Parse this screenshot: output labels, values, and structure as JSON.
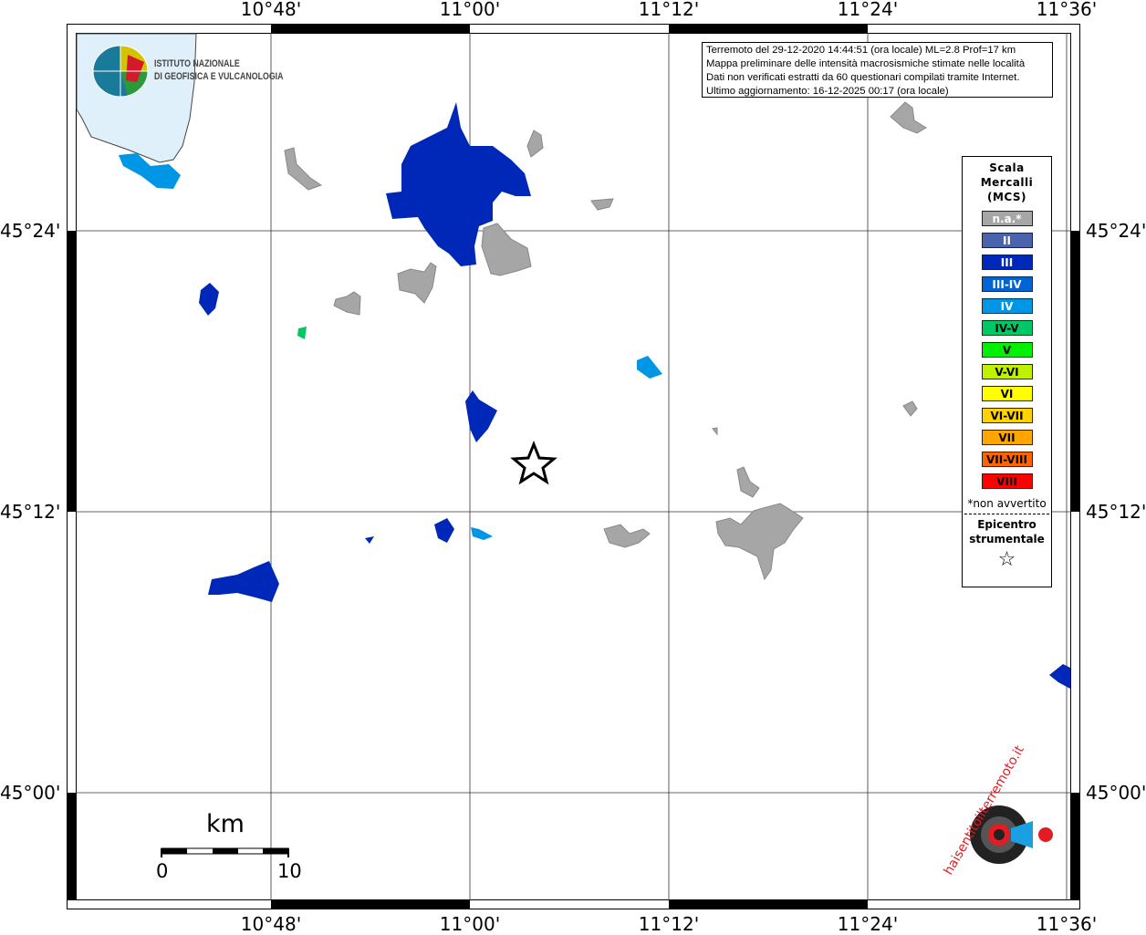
{
  "map": {
    "lon_ticks": [
      "10°48'",
      "11°00'",
      "11°12'",
      "11°24'",
      "11°36'"
    ],
    "lat_ticks": [
      "45°24'",
      "45°12'",
      "45°00'"
    ],
    "colors": {
      "water": "#e0f0fb",
      "grey": "#a6a6a6",
      "II": "#4b63ad",
      "III": "#0028b8",
      "III-IV": "#0064d2",
      "IV": "#0096e6",
      "IV-V": "#00c864",
      "epicenter": "#000000"
    }
  },
  "info": {
    "line1": "Terremoto del 29-12-2020 14:44:51 (ora locale) ML=2.8 Prof=17 km",
    "line2": "Mappa preliminare delle intensità macrosismiche stimate nelle località",
    "line3": "Dati non verificati estratti da 60 questionari compilati tramite Internet.",
    "line4": "Ultimo aggiornamento: 16-12-2025 00:17 (ora locale)"
  },
  "legend": {
    "title1": "Scala",
    "title2": "Mercalli",
    "title3": "(MCS)",
    "items": [
      {
        "label": "n.a.*",
        "color": "#a6a6a6",
        "text": "#ffffff"
      },
      {
        "label": "II",
        "color": "#4b63ad",
        "text": "#ffffff"
      },
      {
        "label": "III",
        "color": "#0028b8",
        "text": "#ffffff"
      },
      {
        "label": "III-IV",
        "color": "#0064d2",
        "text": "#ffffff"
      },
      {
        "label": "IV",
        "color": "#0096e6",
        "text": "#ffffff"
      },
      {
        "label": "IV-V",
        "color": "#00c864",
        "text": "#000000"
      },
      {
        "label": "V",
        "color": "#00f000",
        "text": "#000000"
      },
      {
        "label": "V-VI",
        "color": "#c0f000",
        "text": "#000000"
      },
      {
        "label": "VI",
        "color": "#ffff00",
        "text": "#000000"
      },
      {
        "label": "VI-VII",
        "color": "#ffd200",
        "text": "#000000"
      },
      {
        "label": "VII",
        "color": "#ffa500",
        "text": "#000000"
      },
      {
        "label": "VII-VIII",
        "color": "#ff6400",
        "text": "#000000"
      },
      {
        "label": "VIII",
        "color": "#ff0000",
        "text": "#000000"
      }
    ],
    "note": "*non avvertito",
    "epicenter1": "Epicentro",
    "epicenter2": "strumentale",
    "epicenter_symbol": "☆"
  },
  "logo": {
    "line1": "ISTITUTO NAZIONALE",
    "line2": "DI GEOFISICA E VULCANOLOGIA",
    "hsit": "haisentitoilterremoto.it www."
  },
  "scalebar": {
    "unit": "km",
    "min": "0",
    "max": "10"
  }
}
